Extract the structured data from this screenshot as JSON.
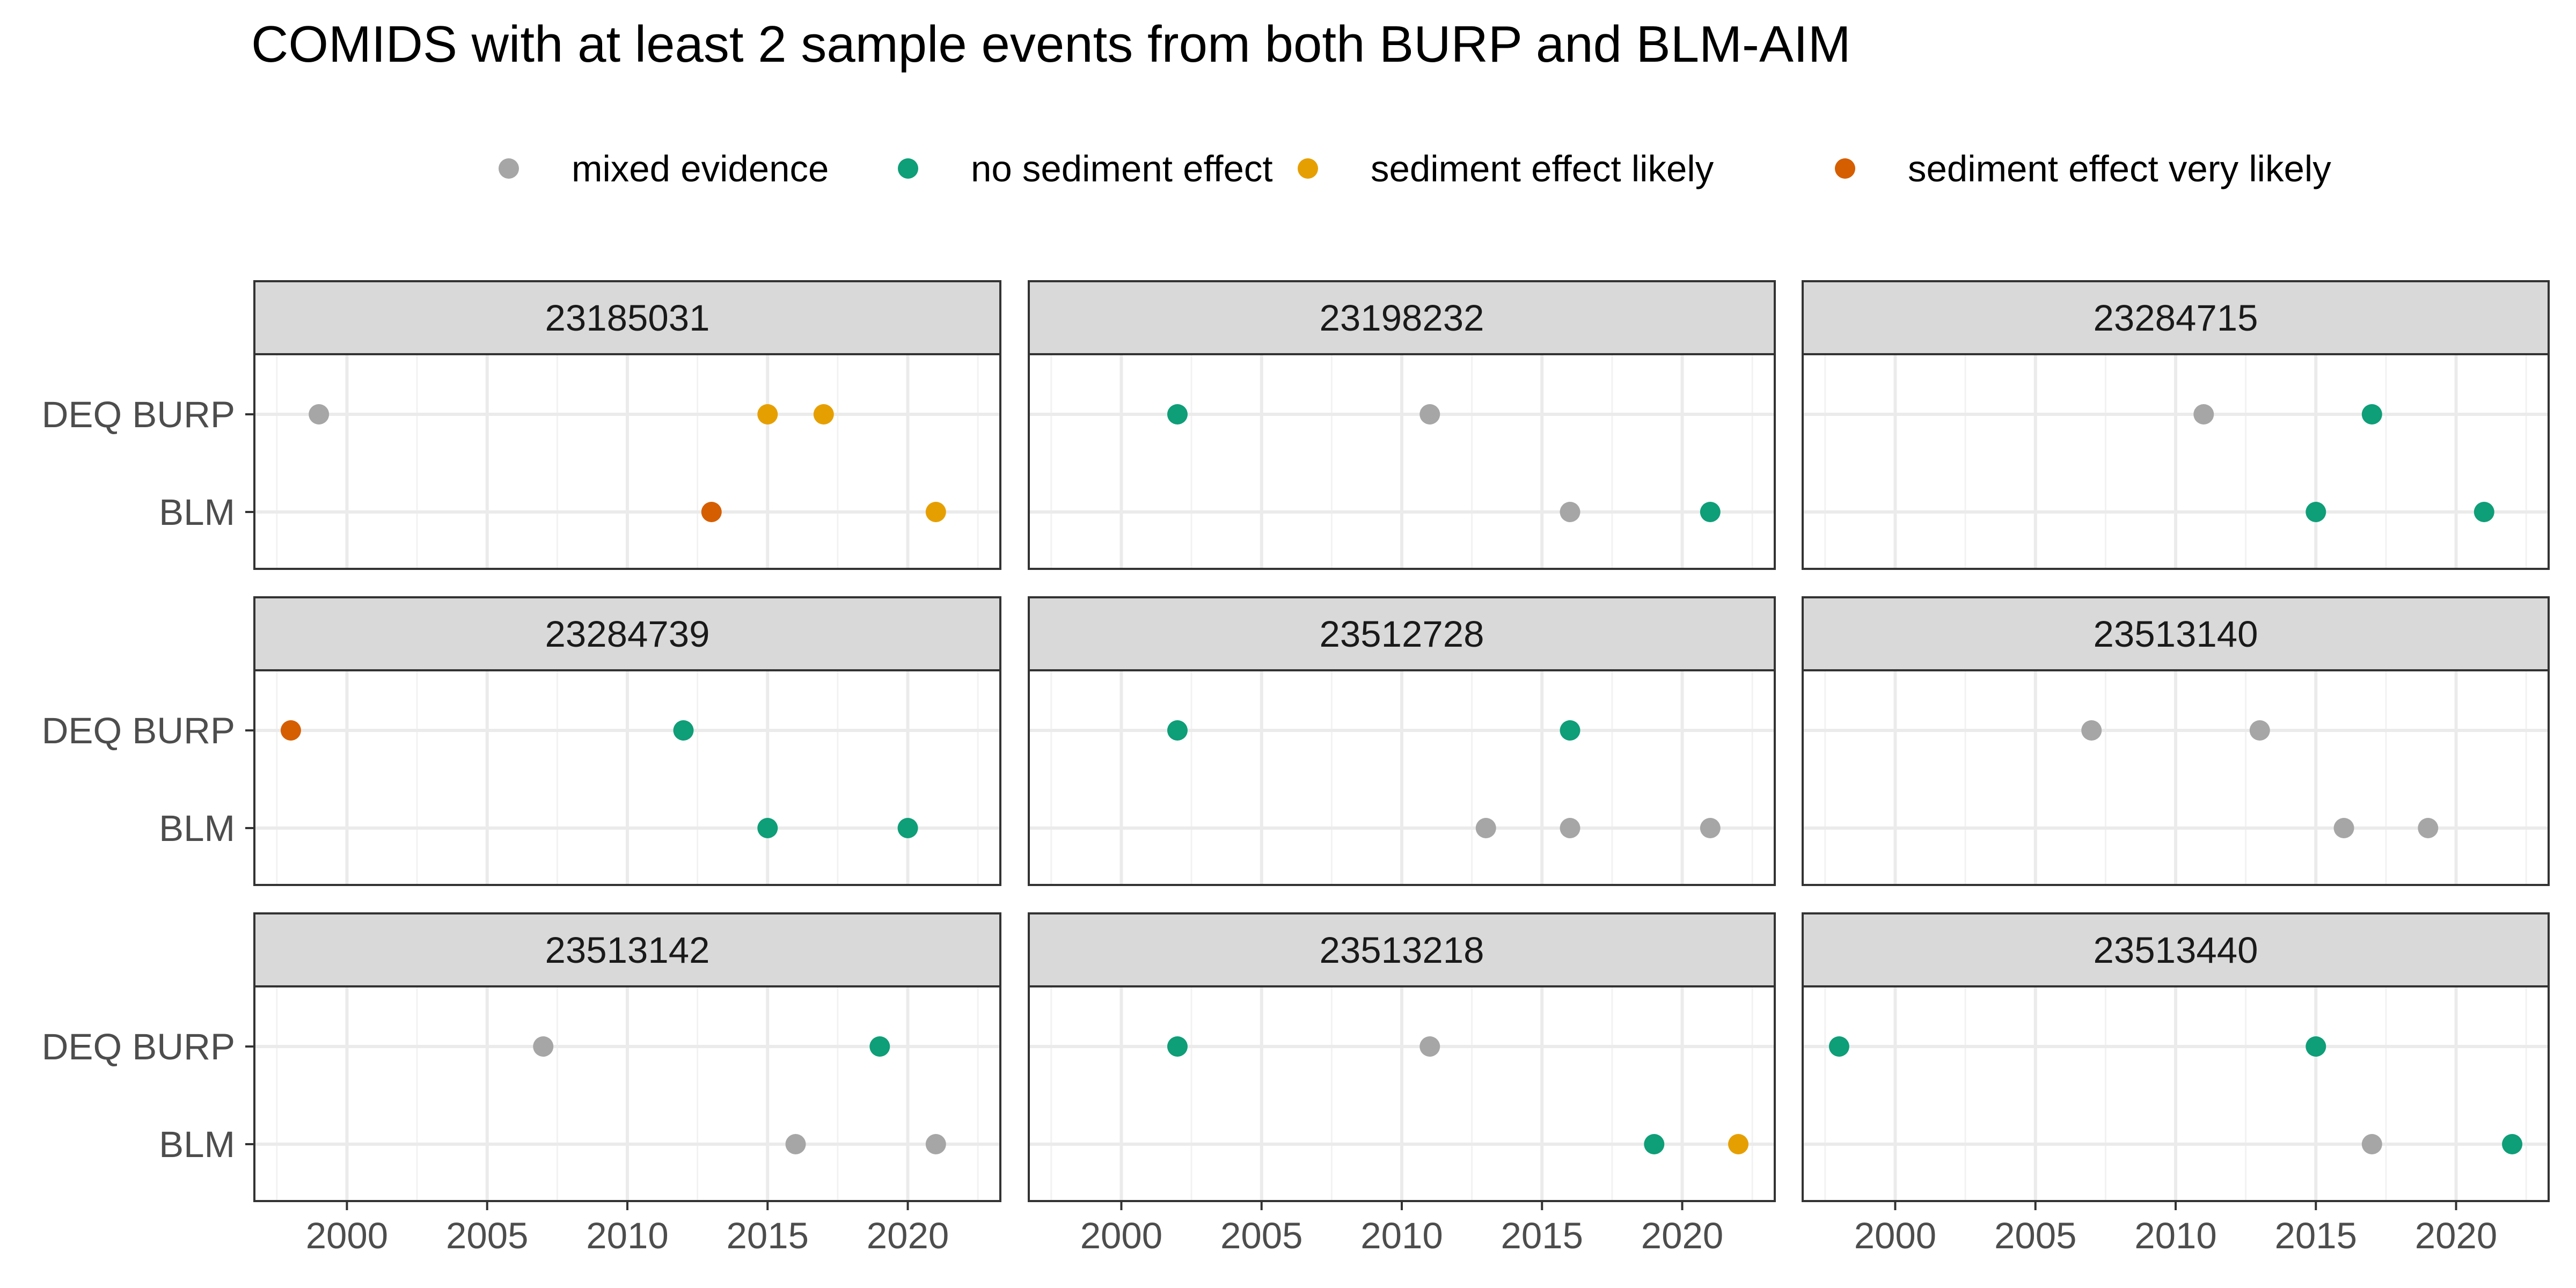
{
  "chart_data": {
    "type": "scatter",
    "title": "COMIDS with at least 2 sample events from both BURP and BLM-AIM",
    "xlabel": "",
    "ylabel": "",
    "xlim": [
      1996.7,
      2023.3
    ],
    "x_ticks": [
      2000,
      2005,
      2010,
      2015,
      2020
    ],
    "y_categories": [
      "DEQ BURP",
      "BLM"
    ],
    "grid": true,
    "legend_position": "top",
    "legend": [
      {
        "key": "mixed",
        "label": "mixed evidence",
        "color": "#A6A6A6"
      },
      {
        "key": "none",
        "label": "no sediment effect",
        "color": "#0E9E78"
      },
      {
        "key": "likely",
        "label": "sediment effect likely",
        "color": "#E69F00"
      },
      {
        "key": "very",
        "label": "sediment effect very likely",
        "color": "#D55E00"
      }
    ],
    "panels": [
      {
        "title": "23185031",
        "points": [
          {
            "y": "DEQ BURP",
            "x": 1999,
            "cat": "mixed"
          },
          {
            "y": "DEQ BURP",
            "x": 2015,
            "cat": "likely"
          },
          {
            "y": "DEQ BURP",
            "x": 2017,
            "cat": "likely"
          },
          {
            "y": "BLM",
            "x": 2013,
            "cat": "very"
          },
          {
            "y": "BLM",
            "x": 2021,
            "cat": "likely"
          }
        ]
      },
      {
        "title": "23198232",
        "points": [
          {
            "y": "DEQ BURP",
            "x": 2002,
            "cat": "none"
          },
          {
            "y": "DEQ BURP",
            "x": 2011,
            "cat": "mixed"
          },
          {
            "y": "BLM",
            "x": 2016,
            "cat": "mixed"
          },
          {
            "y": "BLM",
            "x": 2021,
            "cat": "none"
          }
        ]
      },
      {
        "title": "23284715",
        "points": [
          {
            "y": "DEQ BURP",
            "x": 2011,
            "cat": "mixed"
          },
          {
            "y": "DEQ BURP",
            "x": 2017,
            "cat": "none"
          },
          {
            "y": "BLM",
            "x": 2015,
            "cat": "none"
          },
          {
            "y": "BLM",
            "x": 2021,
            "cat": "none"
          }
        ]
      },
      {
        "title": "23284739",
        "points": [
          {
            "y": "DEQ BURP",
            "x": 1998,
            "cat": "very"
          },
          {
            "y": "DEQ BURP",
            "x": 2012,
            "cat": "none"
          },
          {
            "y": "BLM",
            "x": 2015,
            "cat": "none"
          },
          {
            "y": "BLM",
            "x": 2020,
            "cat": "none"
          }
        ]
      },
      {
        "title": "23512728",
        "points": [
          {
            "y": "DEQ BURP",
            "x": 2002,
            "cat": "none"
          },
          {
            "y": "DEQ BURP",
            "x": 2016,
            "cat": "none"
          },
          {
            "y": "BLM",
            "x": 2013,
            "cat": "mixed"
          },
          {
            "y": "BLM",
            "x": 2016,
            "cat": "mixed"
          },
          {
            "y": "BLM",
            "x": 2021,
            "cat": "mixed"
          }
        ]
      },
      {
        "title": "23513140",
        "points": [
          {
            "y": "DEQ BURP",
            "x": 2007,
            "cat": "mixed"
          },
          {
            "y": "DEQ BURP",
            "x": 2013,
            "cat": "mixed"
          },
          {
            "y": "BLM",
            "x": 2016,
            "cat": "mixed"
          },
          {
            "y": "BLM",
            "x": 2019,
            "cat": "mixed"
          }
        ]
      },
      {
        "title": "23513142",
        "points": [
          {
            "y": "DEQ BURP",
            "x": 2007,
            "cat": "mixed"
          },
          {
            "y": "DEQ BURP",
            "x": 2019,
            "cat": "none"
          },
          {
            "y": "BLM",
            "x": 2016,
            "cat": "mixed"
          },
          {
            "y": "BLM",
            "x": 2021,
            "cat": "mixed"
          }
        ]
      },
      {
        "title": "23513218",
        "points": [
          {
            "y": "DEQ BURP",
            "x": 2002,
            "cat": "none"
          },
          {
            "y": "DEQ BURP",
            "x": 2011,
            "cat": "mixed"
          },
          {
            "y": "BLM",
            "x": 2019,
            "cat": "none"
          },
          {
            "y": "BLM",
            "x": 2022,
            "cat": "likely"
          }
        ]
      },
      {
        "title": "23513440",
        "points": [
          {
            "y": "DEQ BURP",
            "x": 1998,
            "cat": "none"
          },
          {
            "y": "DEQ BURP",
            "x": 2015,
            "cat": "none"
          },
          {
            "y": "BLM",
            "x": 2017,
            "cat": "mixed"
          },
          {
            "y": "BLM",
            "x": 2022,
            "cat": "none"
          }
        ]
      }
    ]
  }
}
